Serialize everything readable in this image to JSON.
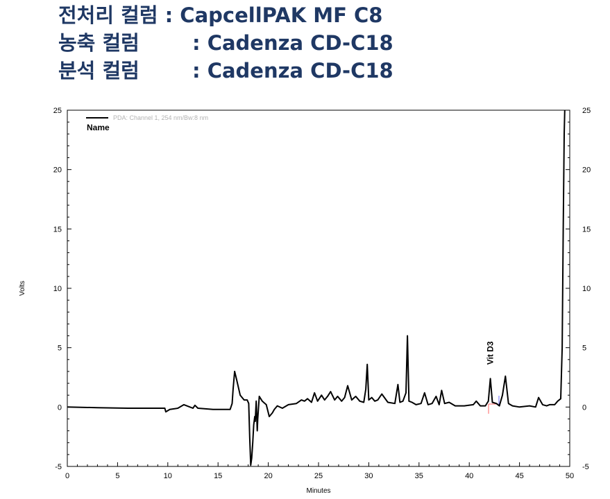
{
  "header": {
    "lines": [
      {
        "name": "전처리 컬럼",
        "value": ": CapcellPAK MF C8"
      },
      {
        "name": "농축 컬럼",
        "value": ": Cadenza CD-C18"
      },
      {
        "name": "분석 컬럼",
        "value": ": Cadenza CD-C18"
      }
    ]
  },
  "chart_data": {
    "type": "line",
    "title": "",
    "xlabel": "Minutes",
    "ylabel": "Volts",
    "xlim": [
      0,
      50
    ],
    "ylim": [
      -5,
      25
    ],
    "x_ticks": [
      "0",
      "5",
      "10",
      "15",
      "20",
      "25",
      "30",
      "35",
      "40",
      "45",
      "50"
    ],
    "y_ticks": [
      "-5",
      "0",
      "5",
      "10",
      "15",
      "20",
      "25"
    ],
    "legend": {
      "label": "PDA: Channel 1, 254 nm/Bw:8 nm",
      "placement": "top-left",
      "name_label": "Name"
    },
    "peak_annotations": [
      {
        "label": "Vit D3",
        "x": 42.1,
        "y": 2.4
      }
    ],
    "colors": {
      "header": "#1f3864",
      "trace": "#000000",
      "legend_text": "#b3b3b3",
      "marker_red": "#ff6666",
      "marker_blue": "#6a6aff"
    },
    "series": [
      {
        "name": "PDA: Channel 1, 254 nm/Bw:8 nm",
        "x": [
          0,
          3,
          6,
          9.7,
          9.8,
          10.2,
          11.0,
          11.6,
          12.2,
          12.5,
          12.7,
          13.0,
          14.5,
          16.2,
          16.4,
          16.5,
          16.65,
          16.85,
          17.2,
          17.6,
          17.9,
          18.05,
          18.15,
          18.25,
          18.35,
          18.45,
          18.55,
          18.65,
          18.7,
          18.8,
          18.9,
          18.95,
          19.1,
          19.4,
          19.8,
          20.1,
          20.4,
          20.6,
          20.9,
          21.4,
          22.0,
          22.8,
          23.3,
          23.6,
          23.9,
          24.3,
          24.6,
          24.9,
          25.3,
          25.6,
          25.9,
          26.2,
          26.6,
          26.9,
          27.3,
          27.6,
          27.9,
          28.3,
          28.7,
          29.1,
          29.5,
          29.7,
          29.85,
          30.0,
          30.3,
          30.6,
          30.9,
          31.3,
          31.9,
          32.6,
          32.9,
          33.1,
          33.4,
          33.7,
          33.85,
          34.0,
          34.3,
          34.7,
          35.2,
          35.55,
          35.9,
          36.3,
          36.7,
          37.0,
          37.25,
          37.55,
          38.0,
          38.6,
          39.5,
          40.4,
          40.7,
          41.1,
          41.6,
          41.9,
          42.1,
          42.3,
          42.7,
          43.0,
          43.3,
          43.6,
          43.9,
          44.3,
          45.0,
          46.0,
          46.6,
          46.9,
          47.3,
          47.7,
          48.0,
          48.5,
          48.8,
          49.1,
          49.25,
          49.35,
          49.45,
          49.5
        ],
        "values": [
          0,
          -0.05,
          -0.1,
          -0.1,
          -0.4,
          -0.2,
          -0.1,
          0.2,
          0.0,
          -0.1,
          0.15,
          -0.1,
          -0.2,
          -0.2,
          0.3,
          1.5,
          3.0,
          2.3,
          1.0,
          0.6,
          0.6,
          0.3,
          -2.5,
          -4.9,
          -4.3,
          -3.0,
          -1.5,
          -0.8,
          -1.2,
          0.5,
          -2.0,
          -1.0,
          0.9,
          0.5,
          0.2,
          -0.8,
          -0.5,
          -0.2,
          0.1,
          -0.1,
          0.2,
          0.3,
          0.6,
          0.5,
          0.7,
          0.4,
          1.2,
          0.5,
          1.0,
          0.6,
          0.9,
          1.3,
          0.6,
          0.9,
          0.5,
          0.8,
          1.8,
          0.6,
          0.9,
          0.5,
          0.4,
          1.5,
          3.6,
          0.6,
          0.8,
          0.5,
          0.6,
          1.1,
          0.4,
          0.3,
          1.9,
          0.4,
          0.5,
          1.2,
          6.0,
          0.5,
          0.4,
          0.2,
          0.3,
          1.2,
          0.2,
          0.3,
          0.9,
          0.2,
          1.4,
          0.3,
          0.4,
          0.1,
          0.1,
          0.2,
          0.5,
          0.1,
          0.1,
          0.5,
          2.4,
          0.4,
          0.3,
          0.1,
          1.0,
          2.6,
          0.3,
          0.1,
          0.0,
          0.1,
          0.0,
          0.8,
          0.2,
          0.1,
          0.2,
          0.2,
          0.5,
          0.7,
          5.0,
          15.0,
          23.0,
          25.0
        ]
      }
    ]
  }
}
